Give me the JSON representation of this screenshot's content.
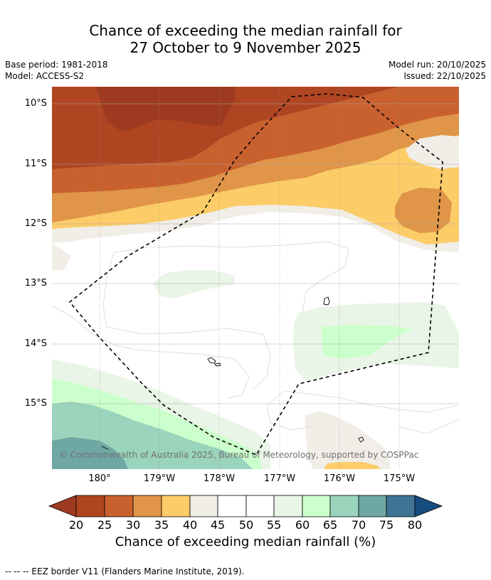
{
  "title_line1": "Chance of exceeding the median rainfall for",
  "title_line2": "27 October to 9 November 2025",
  "meta": {
    "base_period": "Base period: 1981-2018",
    "model": "Model: ACCESS-S2",
    "model_run": "Model run: 20/10/2025",
    "issued": "Issued: 22/10/2025"
  },
  "map": {
    "lat_labels": [
      "10°S",
      "11°S",
      "12°S",
      "13°S",
      "14°S",
      "15°S"
    ],
    "lon_labels": [
      "180°",
      "179°W",
      "178°W",
      "177°W",
      "176°W",
      "175°W"
    ],
    "copyright": "© Commonwealth of Australia 2025, Bureau of Meteorology, supported by COSPPac",
    "eez_border": "EEZ border"
  },
  "colorbar": {
    "ticks": [
      "20",
      "25",
      "30",
      "35",
      "40",
      "45",
      "50",
      "55",
      "60",
      "65",
      "70",
      "75",
      "80"
    ],
    "colors": [
      "#9e3a1f",
      "#b04522",
      "#c9612f",
      "#e09548",
      "#fccc68",
      "#f1ede7",
      "#ffffff",
      "#ffffff",
      "#e9f5e6",
      "#cbffcb",
      "#9ad4bc",
      "#6fa7a4",
      "#3f7496",
      "#164c80"
    ],
    "label": "Chance of exceeding median rainfall (%)"
  },
  "footnote": "--  --  -- EEZ border V11 (Flanders Marine Institute, 2019)."
}
